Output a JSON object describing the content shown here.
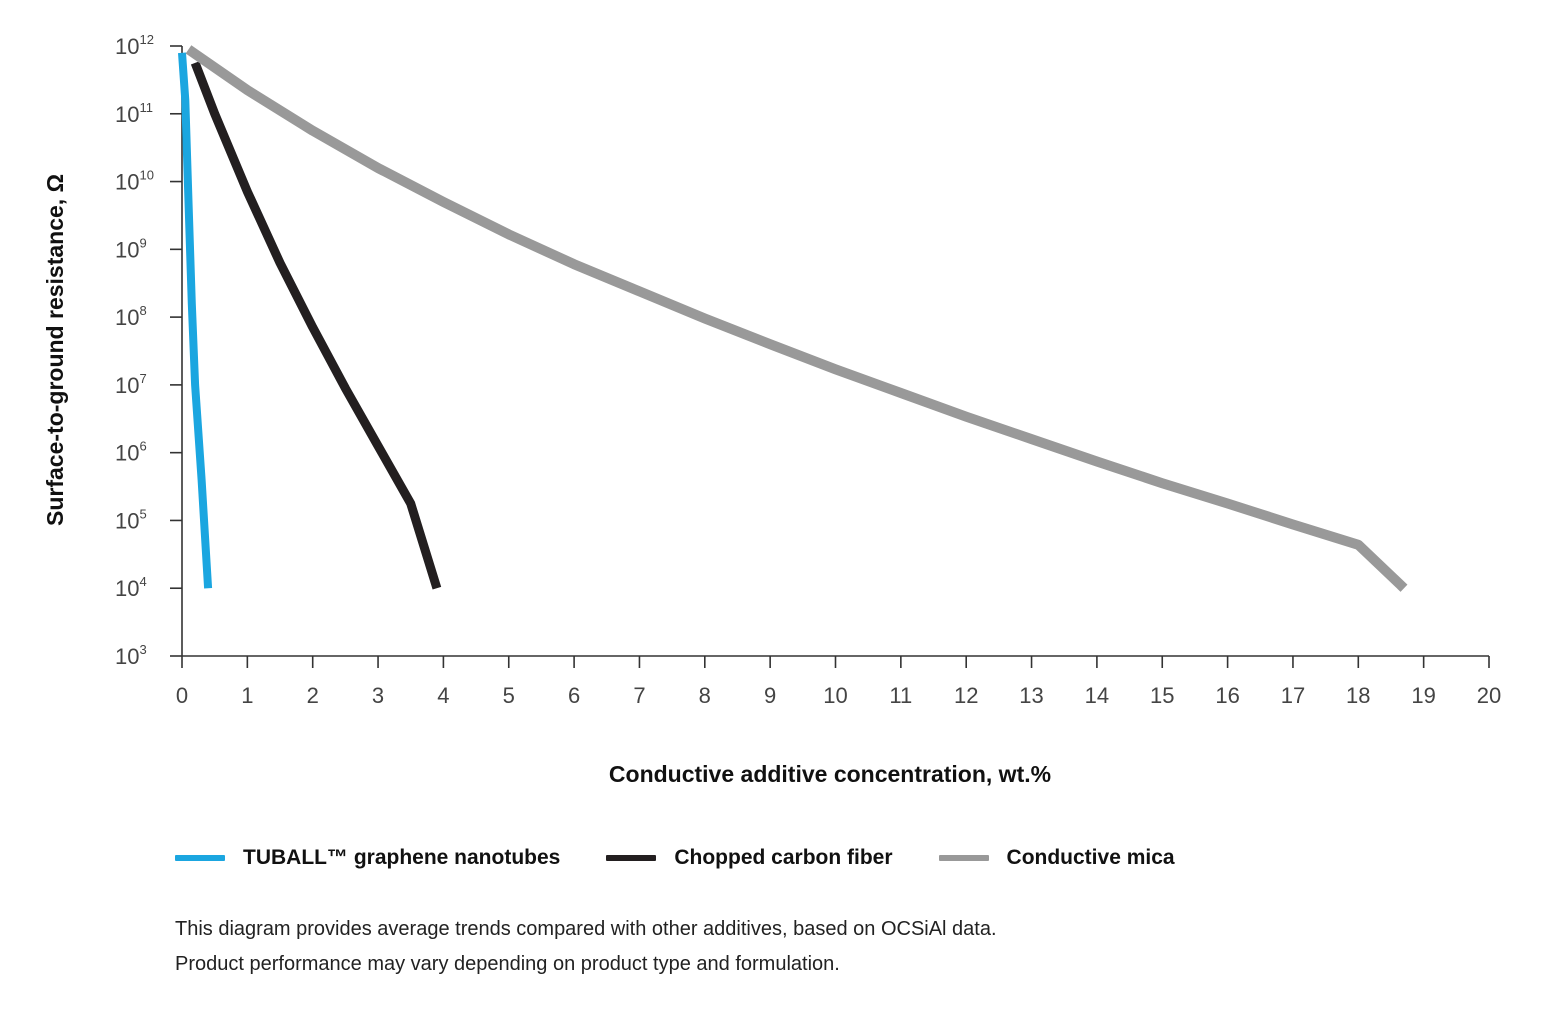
{
  "chart_data": {
    "type": "line",
    "xlabel": "Conductive additive concentration, wt.%",
    "ylabel": "Surface-to-ground resistance, Ω",
    "xlim": [
      0,
      20
    ],
    "ylim": [
      3,
      12
    ],
    "y_scale": "log",
    "x_ticks": [
      "0",
      "1",
      "2",
      "3",
      "4",
      "5",
      "6",
      "7",
      "8",
      "9",
      "10",
      "11",
      "12",
      "13",
      "14",
      "15",
      "16",
      "17",
      "18",
      "19",
      "20"
    ],
    "y_ticks": [
      {
        "base": "10",
        "exp": "3"
      },
      {
        "base": "10",
        "exp": "4"
      },
      {
        "base": "10",
        "exp": "5"
      },
      {
        "base": "10",
        "exp": "6"
      },
      {
        "base": "10",
        "exp": "7"
      },
      {
        "base": "10",
        "exp": "8"
      },
      {
        "base": "10",
        "exp": "9"
      },
      {
        "base": "10",
        "exp": "10"
      },
      {
        "base": "10",
        "exp": "11"
      },
      {
        "base": "10",
        "exp": "12"
      }
    ],
    "series": [
      {
        "name": "TUBALL™ graphene nanotubes",
        "color": "#1ba6e0",
        "points": [
          [
            0.0,
            11.9
          ],
          [
            0.05,
            11.2
          ],
          [
            0.1,
            9.7
          ],
          [
            0.15,
            8.2
          ],
          [
            0.2,
            7.0
          ],
          [
            0.3,
            5.6
          ],
          [
            0.4,
            4.0
          ]
        ]
      },
      {
        "name": "Chopped carbon fiber",
        "color": "#231f20",
        "points": [
          [
            0.2,
            11.75
          ],
          [
            0.5,
            11.0
          ],
          [
            1.0,
            9.85
          ],
          [
            1.5,
            8.8
          ],
          [
            2.0,
            7.85
          ],
          [
            2.5,
            6.95
          ],
          [
            3.0,
            6.1
          ],
          [
            3.5,
            5.25
          ],
          [
            3.9,
            4.0
          ]
        ]
      },
      {
        "name": "Conductive mica",
        "color": "#999999",
        "points": [
          [
            0.1,
            11.95
          ],
          [
            1.0,
            11.35
          ],
          [
            2.0,
            10.75
          ],
          [
            3.0,
            10.2
          ],
          [
            4.0,
            9.7
          ],
          [
            5.0,
            9.22
          ],
          [
            6.0,
            8.78
          ],
          [
            7.0,
            8.38
          ],
          [
            8.0,
            7.98
          ],
          [
            9.0,
            7.6
          ],
          [
            10.0,
            7.23
          ],
          [
            11.0,
            6.88
          ],
          [
            12.0,
            6.53
          ],
          [
            13.0,
            6.2
          ],
          [
            14.0,
            5.87
          ],
          [
            15.0,
            5.55
          ],
          [
            16.0,
            5.25
          ],
          [
            17.0,
            4.94
          ],
          [
            18.0,
            4.64
          ],
          [
            18.7,
            4.0
          ]
        ]
      }
    ],
    "grid": false,
    "legend_position": "bottom-left"
  },
  "footnote": {
    "line1": "This diagram provides average trends compared with other additives, based on OCSiAl data.",
    "line2": "Product performance may vary depending on product type and formulation."
  }
}
